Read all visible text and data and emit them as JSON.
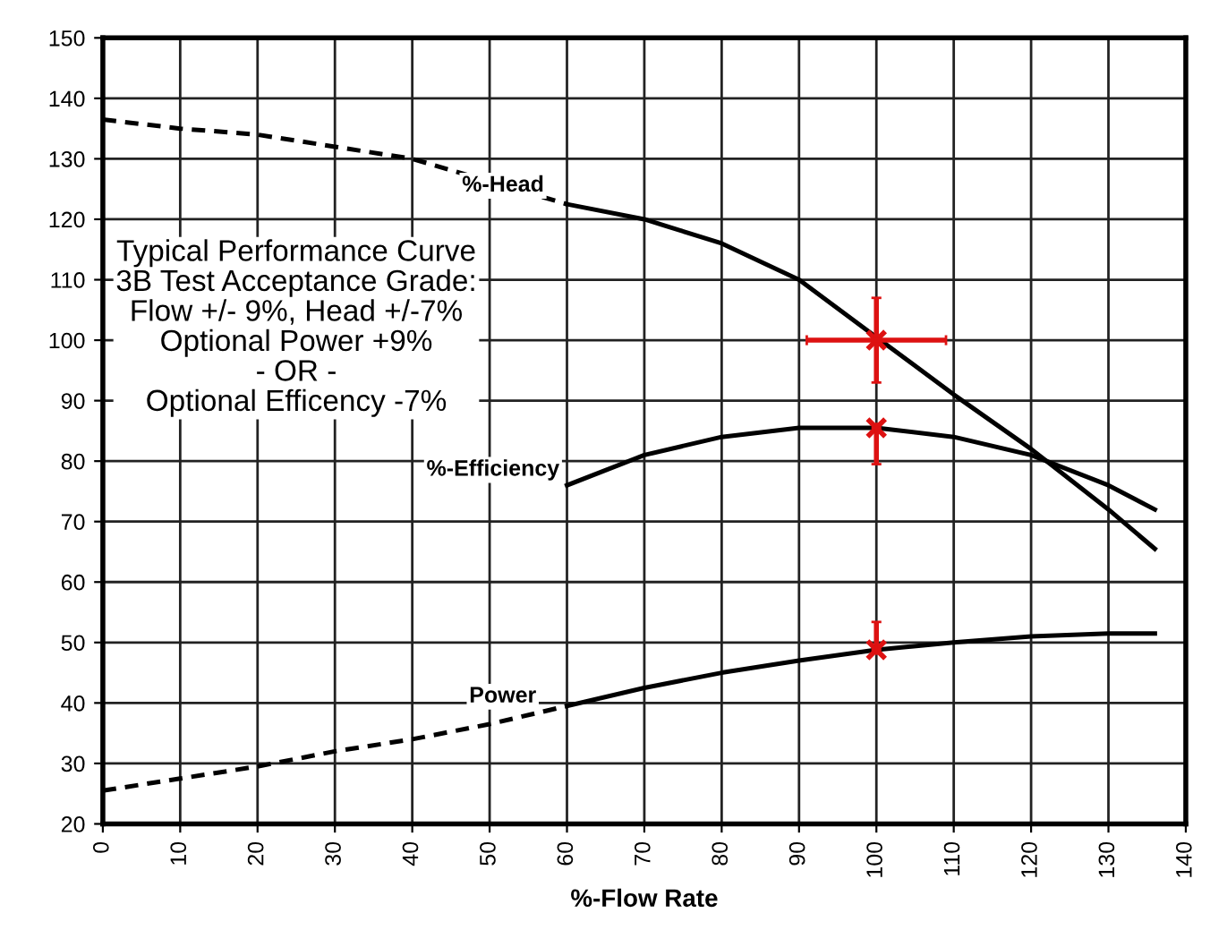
{
  "chart_data": {
    "type": "line",
    "xlabel": "%-Flow Rate",
    "xlim": [
      0,
      140
    ],
    "ylim": [
      20,
      150
    ],
    "xticks": [
      0,
      10,
      20,
      30,
      40,
      50,
      60,
      70,
      80,
      90,
      100,
      110,
      120,
      130,
      140
    ],
    "yticks": [
      20,
      30,
      40,
      50,
      60,
      70,
      80,
      90,
      100,
      110,
      120,
      130,
      140,
      150
    ],
    "grid": true,
    "legend": false,
    "marker": "none",
    "series": [
      {
        "color": "#000000",
        "line_style": "dashed",
        "x": [
          0,
          10,
          20,
          30,
          40,
          60
        ],
        "values": [
          136.5,
          135,
          134,
          132,
          130,
          122.5
        ]
      },
      {
        "color": "#000000",
        "line_style": "solid",
        "x": [
          60,
          70,
          80,
          90,
          100,
          110,
          120,
          130,
          136
        ],
        "values": [
          122.5,
          120,
          116,
          110,
          100.5,
          91,
          82,
          72,
          65.5
        ]
      },
      {
        "color": "#000000",
        "line_style": "solid",
        "x": [
          60,
          70,
          80,
          90,
          100,
          110,
          120,
          130,
          136
        ],
        "values": [
          76,
          81,
          84,
          85.5,
          85.5,
          84,
          81,
          76,
          72
        ]
      },
      {
        "color": "#000000",
        "line_style": "dashed",
        "x": [
          0,
          10,
          20,
          30,
          40,
          50,
          60
        ],
        "values": [
          25.5,
          27.5,
          29.5,
          32,
          34,
          36.5,
          39.5
        ]
      },
      {
        "color": "#000000",
        "line_style": "solid",
        "x": [
          60,
          70,
          80,
          90,
          100,
          110,
          120,
          130,
          136
        ],
        "values": [
          39.5,
          42.5,
          45,
          47,
          48.8,
          50,
          51,
          51.5,
          51.5
        ]
      },
      {
        "type": "scatter",
        "color": "#dd1111",
        "marker": "cross",
        "x": [
          100,
          100,
          100
        ],
        "values": [
          100,
          85.5,
          48.8
        ],
        "errors": [
          [
            93,
            107
          ],
          [
            79.5,
            85.5
          ],
          [
            48.8,
            53.4
          ]
        ],
        "xerrors": [
          [
            91,
            109
          ],
          null,
          null
        ]
      }
    ],
    "annotations": [
      {
        "text": "%-Head",
        "x": 58,
        "y": 123
      },
      {
        "text": "%-Efficiency",
        "x": 60,
        "y": 76
      },
      {
        "text": "Power",
        "x": 57,
        "y": 38.5
      },
      "Typical Performance Curve\n3B Test Acceptance Grade:\nFlow +/- 9%, Head +/-7%\nOptional Power +9%\n- OR -\nOptional Efficency -7%"
    ]
  }
}
